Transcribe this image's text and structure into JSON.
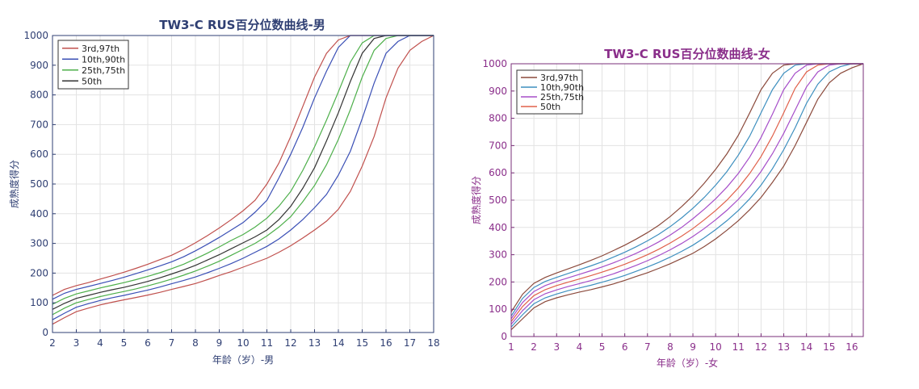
{
  "chart_data": [
    {
      "type": "line",
      "title": "TW3-C RUS百分位数曲线-男",
      "xlabel": "年龄（岁）-男",
      "ylabel": "成熟度得分",
      "xlim": [
        2,
        18
      ],
      "ylim": [
        0,
        1000
      ],
      "xticks": [
        "2",
        "3",
        "4",
        "5",
        "6",
        "7",
        "8",
        "9",
        "10",
        "11",
        "12",
        "13",
        "14",
        "15",
        "16",
        "17",
        "18"
      ],
      "yticks": [
        "0",
        "100",
        "200",
        "300",
        "400",
        "500",
        "600",
        "700",
        "800",
        "900",
        "1000"
      ],
      "grid": true,
      "legend_position": "top-left",
      "legend": [
        {
          "label": "3rd,97th",
          "color": "#c0504d"
        },
        {
          "label": "10th,90th",
          "color": "#3a4fb5"
        },
        {
          "label": "25th,75th",
          "color": "#4daf4a"
        },
        {
          "label": "50th",
          "color": "#333333"
        }
      ],
      "x": [
        2,
        2.5,
        3,
        3.5,
        4,
        4.5,
        5,
        5.5,
        6,
        6.5,
        7,
        7.5,
        8,
        8.5,
        9,
        9.5,
        10,
        10.5,
        11,
        11.5,
        12,
        12.5,
        13,
        13.5,
        14,
        14.5,
        15,
        15.5,
        16,
        16.5,
        17,
        17.5,
        18
      ],
      "series": [
        {
          "color": "#c0504d",
          "values": [
            28,
            50,
            70,
            82,
            93,
            102,
            110,
            118,
            126,
            135,
            145,
            155,
            165,
            178,
            192,
            205,
            220,
            235,
            250,
            270,
            292,
            318,
            345,
            375,
            415,
            475,
            560,
            660,
            790,
            890,
            950,
            980,
            1000
          ]
        },
        {
          "color": "#3a4fb5",
          "values": [
            43,
            65,
            85,
            97,
            108,
            117,
            125,
            134,
            143,
            153,
            164,
            175,
            187,
            201,
            216,
            232,
            250,
            270,
            290,
            315,
            345,
            380,
            420,
            465,
            530,
            610,
            720,
            840,
            940,
            980,
            1000,
            1000,
            1000
          ]
        },
        {
          "color": "#4daf4a",
          "values": [
            60,
            82,
            100,
            111,
            121,
            130,
            138,
            147,
            157,
            168,
            180,
            193,
            207,
            223,
            240,
            260,
            280,
            300,
            325,
            355,
            390,
            440,
            495,
            565,
            650,
            750,
            860,
            950,
            990,
            1000,
            1000,
            1000,
            1000
          ]
        },
        {
          "color": "#333333",
          "values": [
            78,
            98,
            115,
            125,
            135,
            144,
            152,
            162,
            172,
            184,
            197,
            211,
            226,
            244,
            262,
            282,
            302,
            322,
            345,
            380,
            425,
            485,
            555,
            645,
            740,
            845,
            940,
            990,
            1000,
            1000,
            1000,
            1000,
            1000
          ]
        },
        {
          "color": "#4daf4a",
          "values": [
            95,
            115,
            130,
            140,
            150,
            159,
            168,
            178,
            189,
            201,
            215,
            230,
            248,
            267,
            288,
            310,
            330,
            355,
            385,
            425,
            475,
            545,
            625,
            715,
            810,
            910,
            975,
            1000,
            1000,
            1000,
            1000,
            1000,
            1000
          ]
        },
        {
          "color": "#3a4fb5",
          "values": [
            112,
            132,
            145,
            155,
            165,
            175,
            186,
            198,
            211,
            224,
            238,
            255,
            275,
            297,
            320,
            345,
            370,
            405,
            445,
            520,
            600,
            690,
            790,
            880,
            960,
            1000,
            1000,
            1000,
            1000,
            1000,
            1000,
            1000,
            1000
          ]
        },
        {
          "color": "#c0504d",
          "values": [
            125,
            145,
            158,
            168,
            180,
            191,
            203,
            216,
            230,
            245,
            260,
            280,
            302,
            326,
            352,
            380,
            410,
            445,
            500,
            570,
            660,
            760,
            860,
            940,
            985,
            1000,
            1000,
            1000,
            1000,
            1000,
            1000,
            1000,
            1000
          ]
        }
      ]
    },
    {
      "type": "line",
      "title": "TW3-C RUS百分位数曲线-女",
      "xlabel": "年龄（岁）-女",
      "ylabel": "成熟度得分",
      "xlim": [
        1,
        16.5
      ],
      "ylim": [
        0,
        1000
      ],
      "xticks": [
        "1",
        "2",
        "3",
        "4",
        "5",
        "6",
        "7",
        "8",
        "9",
        "10",
        "11",
        "12",
        "13",
        "14",
        "15",
        "16"
      ],
      "yticks": [
        "0",
        "100",
        "200",
        "300",
        "400",
        "500",
        "600",
        "700",
        "800",
        "900",
        "1000"
      ],
      "grid": true,
      "legend_position": "top-left",
      "legend": [
        {
          "label": "3rd,97th",
          "color": "#8b4a3c"
        },
        {
          "label": "10th,90th",
          "color": "#3d8fbf"
        },
        {
          "label": "25th,75th",
          "color": "#a64ec9"
        },
        {
          "label": "50th",
          "color": "#e0604a"
        }
      ],
      "x": [
        1,
        1.5,
        2,
        2.5,
        3,
        3.5,
        4,
        4.5,
        5,
        5.5,
        6,
        6.5,
        7,
        7.5,
        8,
        8.5,
        9,
        9.5,
        10,
        10.5,
        11,
        11.5,
        12,
        12.5,
        13,
        13.5,
        14,
        14.5,
        15,
        15.5,
        16,
        16.5
      ],
      "series": [
        {
          "color": "#8b4a3c",
          "values": [
            25,
            65,
            105,
            128,
            142,
            153,
            163,
            172,
            182,
            193,
            206,
            220,
            234,
            250,
            267,
            286,
            305,
            330,
            358,
            390,
            425,
            465,
            510,
            565,
            625,
            700,
            785,
            870,
            930,
            965,
            985,
            1000
          ]
        },
        {
          "color": "#3d8fbf",
          "values": [
            35,
            80,
            120,
            142,
            156,
            168,
            178,
            188,
            199,
            211,
            224,
            239,
            255,
            272,
            291,
            312,
            335,
            362,
            392,
            425,
            462,
            505,
            555,
            615,
            685,
            765,
            855,
            925,
            970,
            990,
            1000,
            1000
          ]
        },
        {
          "color": "#a64ec9",
          "values": [
            45,
            95,
            135,
            157,
            171,
            183,
            194,
            205,
            217,
            230,
            245,
            261,
            278,
            297,
            318,
            341,
            367,
            396,
            428,
            463,
            503,
            550,
            605,
            670,
            745,
            830,
            915,
            970,
            995,
            1000,
            1000,
            1000
          ]
        },
        {
          "color": "#e0604a",
          "values": [
            55,
            110,
            150,
            172,
            187,
            199,
            211,
            223,
            236,
            250,
            265,
            282,
            300,
            320,
            343,
            368,
            396,
            428,
            462,
            500,
            545,
            598,
            660,
            735,
            820,
            910,
            970,
            995,
            1000,
            1000,
            1000,
            1000
          ]
        },
        {
          "color": "#a64ec9",
          "values": [
            65,
            125,
            165,
            187,
            202,
            215,
            228,
            241,
            255,
            270,
            287,
            305,
            325,
            347,
            372,
            400,
            432,
            467,
            505,
            548,
            598,
            658,
            730,
            815,
            905,
            965,
            995,
            1000,
            1000,
            1000,
            1000,
            1000
          ]
        },
        {
          "color": "#3d8fbf",
          "values": [
            75,
            140,
            180,
            202,
            217,
            231,
            245,
            259,
            274,
            291,
            309,
            329,
            351,
            375,
            403,
            435,
            470,
            510,
            555,
            605,
            665,
            735,
            820,
            905,
            965,
            995,
            1000,
            1000,
            1000,
            1000,
            1000,
            1000
          ]
        },
        {
          "color": "#8b4a3c",
          "values": [
            90,
            155,
            195,
            217,
            233,
            248,
            263,
            279,
            296,
            315,
            335,
            357,
            381,
            408,
            440,
            476,
            516,
            562,
            613,
            670,
            738,
            820,
            905,
            965,
            995,
            1000,
            1000,
            1000,
            1000,
            1000,
            1000,
            1000
          ]
        }
      ]
    }
  ]
}
